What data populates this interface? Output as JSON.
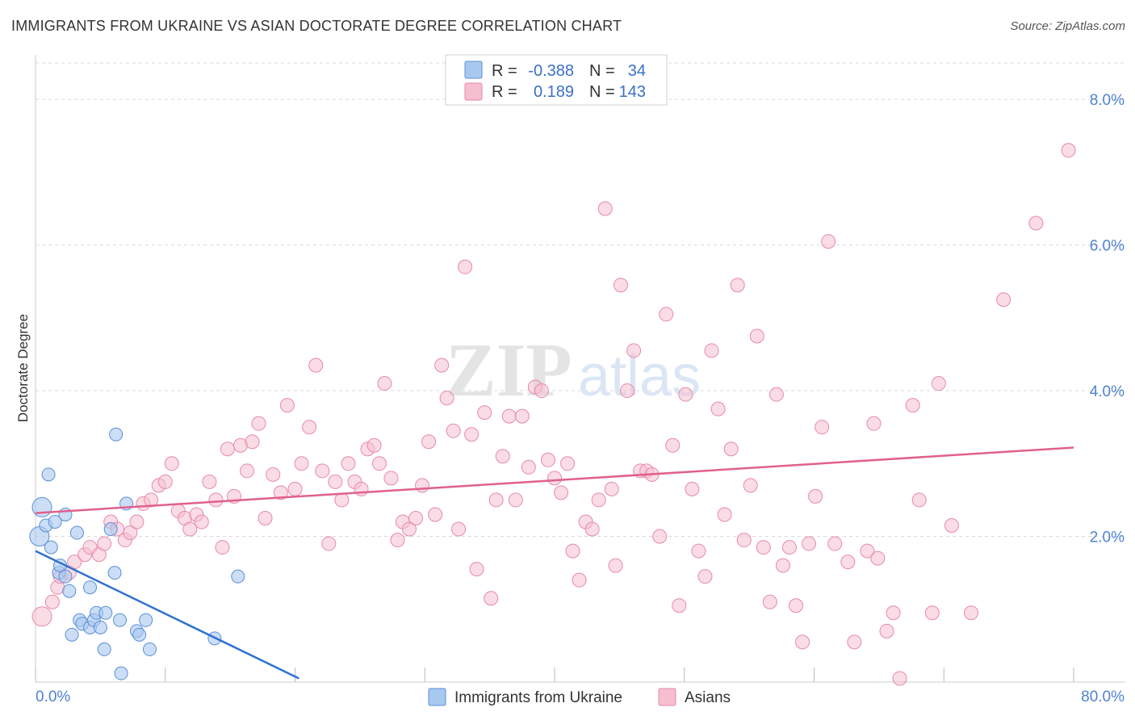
{
  "chart_data": {
    "type": "scatter",
    "title": "IMMIGRANTS FROM UKRAINE VS ASIAN DOCTORATE DEGREE CORRELATION CHART",
    "source": "Source: ZipAtlas.com",
    "xlabel": "",
    "ylabel": "Doctorate Degree",
    "xlim": [
      0,
      80
    ],
    "ylim": [
      0,
      8.5
    ],
    "x_tick_labels": [
      "0.0%",
      "80.0%"
    ],
    "y_ticks": [
      2,
      4,
      6,
      8
    ],
    "y_tick_labels": [
      "2.0%",
      "4.0%",
      "6.0%",
      "8.0%"
    ],
    "legend": {
      "rows": [
        {
          "r_label": "R =",
          "r_value": "-0.388",
          "n_label": "N =",
          "n_value": "34"
        },
        {
          "r_label": "R =",
          "r_value": "0.189",
          "n_label": "N =",
          "n_value": "143"
        }
      ]
    },
    "watermark": "ZIPatlas",
    "colors": {
      "ukraine_fill": "#a9c8f0",
      "ukraine_stroke": "#5b8fd6",
      "ukraine_line": "#2f72d0",
      "asians_fill": "#f6bfd0",
      "asians_stroke": "#e68aa8",
      "asians_line": "#e0608c",
      "tick_text": "#4f82d2",
      "grid": "#d9d9d9"
    },
    "series": [
      {
        "name": "Immigrants from Ukraine",
        "trend": {
          "x0": 0,
          "y0": 1.8,
          "x1": 20.3,
          "y1": 0.05
        },
        "points": [
          [
            0.5,
            2.4
          ],
          [
            0.3,
            2.0
          ],
          [
            0.8,
            2.15
          ],
          [
            1.0,
            2.85
          ],
          [
            1.2,
            1.85
          ],
          [
            1.5,
            2.2
          ],
          [
            1.8,
            1.5
          ],
          [
            1.9,
            1.6
          ],
          [
            2.3,
            2.3
          ],
          [
            2.3,
            1.45
          ],
          [
            2.6,
            1.25
          ],
          [
            2.8,
            0.65
          ],
          [
            3.2,
            2.05
          ],
          [
            3.4,
            0.85
          ],
          [
            3.6,
            0.8
          ],
          [
            4.2,
            0.75
          ],
          [
            4.2,
            1.3
          ],
          [
            4.5,
            0.85
          ],
          [
            4.7,
            0.95
          ],
          [
            5.0,
            0.75
          ],
          [
            5.3,
            0.45
          ],
          [
            5.4,
            0.95
          ],
          [
            5.8,
            2.1
          ],
          [
            6.1,
            1.5
          ],
          [
            6.2,
            3.4
          ],
          [
            6.5,
            0.85
          ],
          [
            6.6,
            0.12
          ],
          [
            7.0,
            2.45
          ],
          [
            7.8,
            0.7
          ],
          [
            8.0,
            0.65
          ],
          [
            8.5,
            0.85
          ],
          [
            8.8,
            0.45
          ],
          [
            13.8,
            0.6
          ],
          [
            15.6,
            1.45
          ]
        ]
      },
      {
        "name": "Asians",
        "trend": {
          "x0": 0,
          "y0": 2.32,
          "x1": 80,
          "y1": 3.22
        },
        "points": [
          [
            0.5,
            0.9
          ],
          [
            1.3,
            1.1
          ],
          [
            1.7,
            1.3
          ],
          [
            1.9,
            1.45
          ],
          [
            2.6,
            1.5
          ],
          [
            3.0,
            1.65
          ],
          [
            3.8,
            1.75
          ],
          [
            4.2,
            1.85
          ],
          [
            4.9,
            1.75
          ],
          [
            5.3,
            1.9
          ],
          [
            5.8,
            2.2
          ],
          [
            6.3,
            2.1
          ],
          [
            6.9,
            1.95
          ],
          [
            7.3,
            2.05
          ],
          [
            7.8,
            2.2
          ],
          [
            8.3,
            2.45
          ],
          [
            8.9,
            2.5
          ],
          [
            9.5,
            2.7
          ],
          [
            10.0,
            2.75
          ],
          [
            10.5,
            3.0
          ],
          [
            11.0,
            2.35
          ],
          [
            11.5,
            2.25
          ],
          [
            11.9,
            2.1
          ],
          [
            12.4,
            2.3
          ],
          [
            12.8,
            2.2
          ],
          [
            13.4,
            2.75
          ],
          [
            13.9,
            2.5
          ],
          [
            14.4,
            1.85
          ],
          [
            14.8,
            3.2
          ],
          [
            15.3,
            2.55
          ],
          [
            15.8,
            3.25
          ],
          [
            16.3,
            2.9
          ],
          [
            16.7,
            3.3
          ],
          [
            17.2,
            3.55
          ],
          [
            17.7,
            2.25
          ],
          [
            18.3,
            2.85
          ],
          [
            18.9,
            2.6
          ],
          [
            19.4,
            3.8
          ],
          [
            20.0,
            2.65
          ],
          [
            20.5,
            3.0
          ],
          [
            21.1,
            3.5
          ],
          [
            21.6,
            4.35
          ],
          [
            22.1,
            2.9
          ],
          [
            22.6,
            1.9
          ],
          [
            23.1,
            2.75
          ],
          [
            23.6,
            2.5
          ],
          [
            24.1,
            3.0
          ],
          [
            24.6,
            2.75
          ],
          [
            25.1,
            2.65
          ],
          [
            25.6,
            3.2
          ],
          [
            26.1,
            3.25
          ],
          [
            26.5,
            3.0
          ],
          [
            26.9,
            4.1
          ],
          [
            27.4,
            2.8
          ],
          [
            27.9,
            1.95
          ],
          [
            28.3,
            2.2
          ],
          [
            28.8,
            2.1
          ],
          [
            29.3,
            2.25
          ],
          [
            29.8,
            2.7
          ],
          [
            30.3,
            3.3
          ],
          [
            30.8,
            2.3
          ],
          [
            31.3,
            4.35
          ],
          [
            31.7,
            3.9
          ],
          [
            32.2,
            3.45
          ],
          [
            32.6,
            2.1
          ],
          [
            33.1,
            5.7
          ],
          [
            33.6,
            3.4
          ],
          [
            34.0,
            1.55
          ],
          [
            34.6,
            3.7
          ],
          [
            35.1,
            1.15
          ],
          [
            35.5,
            2.5
          ],
          [
            36.0,
            3.1
          ],
          [
            36.5,
            3.65
          ],
          [
            37.0,
            2.5
          ],
          [
            37.5,
            3.65
          ],
          [
            38.0,
            2.95
          ],
          [
            38.5,
            4.05
          ],
          [
            39.0,
            4.0
          ],
          [
            39.5,
            3.05
          ],
          [
            40.0,
            2.8
          ],
          [
            40.5,
            2.6
          ],
          [
            41.0,
            3.0
          ],
          [
            41.4,
            1.8
          ],
          [
            41.9,
            1.4
          ],
          [
            42.4,
            2.2
          ],
          [
            42.9,
            2.1
          ],
          [
            43.4,
            2.5
          ],
          [
            43.9,
            6.5
          ],
          [
            44.4,
            2.65
          ],
          [
            44.7,
            1.6
          ],
          [
            45.1,
            5.45
          ],
          [
            45.6,
            4.0
          ],
          [
            46.1,
            4.55
          ],
          [
            46.6,
            2.9
          ],
          [
            47.1,
            2.9
          ],
          [
            47.5,
            2.85
          ],
          [
            48.1,
            2.0
          ],
          [
            48.6,
            5.05
          ],
          [
            49.1,
            3.25
          ],
          [
            49.6,
            1.05
          ],
          [
            50.1,
            3.95
          ],
          [
            50.6,
            2.65
          ],
          [
            51.1,
            1.8
          ],
          [
            51.6,
            1.45
          ],
          [
            52.1,
            4.55
          ],
          [
            52.6,
            3.75
          ],
          [
            53.1,
            2.3
          ],
          [
            53.6,
            3.2
          ],
          [
            54.1,
            5.45
          ],
          [
            54.6,
            1.95
          ],
          [
            55.1,
            2.7
          ],
          [
            55.6,
            4.75
          ],
          [
            56.1,
            1.85
          ],
          [
            56.6,
            1.1
          ],
          [
            57.1,
            3.95
          ],
          [
            57.6,
            1.6
          ],
          [
            58.1,
            1.85
          ],
          [
            58.6,
            1.05
          ],
          [
            59.1,
            0.55
          ],
          [
            59.6,
            1.9
          ],
          [
            60.1,
            2.55
          ],
          [
            60.6,
            3.5
          ],
          [
            61.1,
            6.05
          ],
          [
            61.6,
            1.9
          ],
          [
            62.6,
            1.65
          ],
          [
            63.1,
            0.55
          ],
          [
            64.1,
            1.8
          ],
          [
            64.6,
            3.55
          ],
          [
            64.9,
            1.7
          ],
          [
            65.6,
            0.7
          ],
          [
            66.1,
            0.95
          ],
          [
            66.6,
            0.05
          ],
          [
            67.6,
            3.8
          ],
          [
            68.1,
            2.5
          ],
          [
            69.1,
            0.95
          ],
          [
            69.6,
            4.1
          ],
          [
            70.6,
            2.15
          ],
          [
            72.1,
            0.95
          ],
          [
            74.6,
            5.25
          ],
          [
            77.1,
            6.3
          ],
          [
            79.6,
            7.3
          ]
        ]
      }
    ]
  }
}
